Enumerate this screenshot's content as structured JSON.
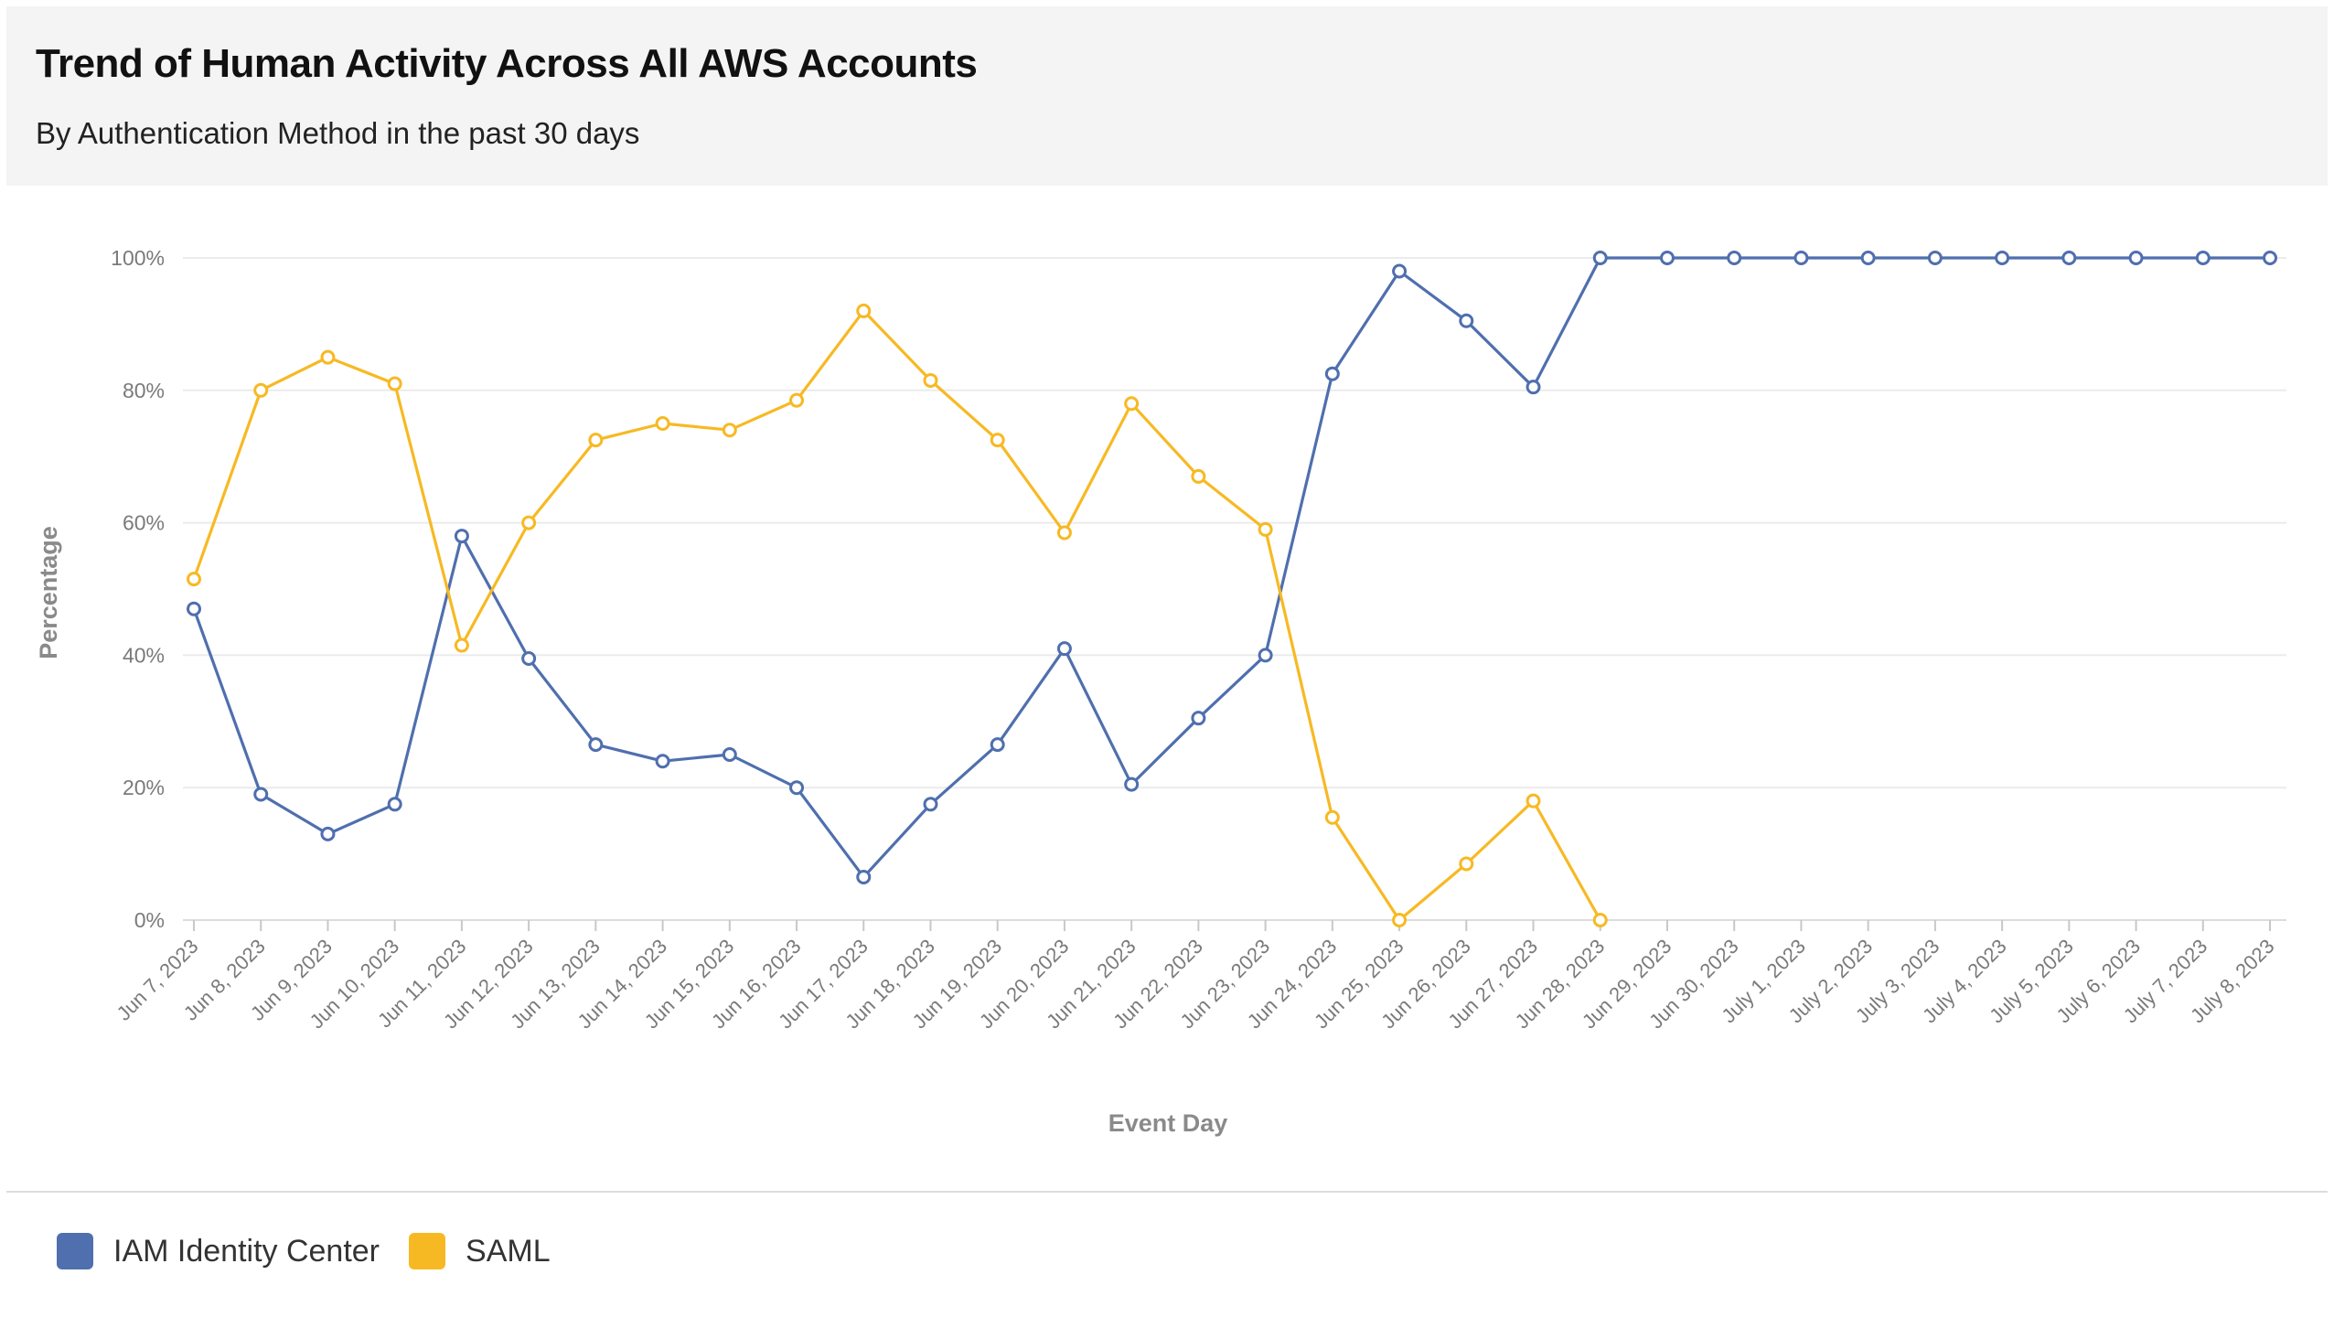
{
  "header": {
    "title": "Trend of Human Activity Across All AWS Accounts",
    "subtitle": "By Authentication Method in the past 30 days"
  },
  "colors": {
    "iam": "#4f6fae",
    "saml": "#f7b923",
    "grid": "#ebebeb"
  },
  "legend": [
    {
      "label": "IAM Identity Center",
      "color": "#4f6fae"
    },
    {
      "label": "SAML",
      "color": "#f7b923"
    }
  ],
  "chart_data": {
    "type": "line",
    "title": "Trend of Human Activity Across All AWS Accounts",
    "subtitle": "By Authentication Method in the past 30 days",
    "xlabel": "Event Day",
    "ylabel": "Percentage",
    "ylim": [
      0,
      100
    ],
    "yticks": [
      "0%",
      "20%",
      "40%",
      "60%",
      "80%",
      "100%"
    ],
    "grid": true,
    "legend_position": "bottom-left",
    "categories": [
      "Jun 7, 2023",
      "Jun 8, 2023",
      "Jun 9, 2023",
      "Jun 10, 2023",
      "Jun 11, 2023",
      "Jun 12, 2023",
      "Jun 13, 2023",
      "Jun 14, 2023",
      "Jun 15, 2023",
      "Jun 16, 2023",
      "Jun 17, 2023",
      "Jun 18, 2023",
      "Jun 19, 2023",
      "Jun 20, 2023",
      "Jun 21, 2023",
      "Jun 22, 2023",
      "Jun 23, 2023",
      "Jun 24, 2023",
      "Jun 25, 2023",
      "Jun 26, 2023",
      "Jun 27, 2023",
      "Jun 28, 2023",
      "Jun 29, 2023",
      "Jun 30, 2023",
      "July 1, 2023",
      "July 2, 2023",
      "July 3, 2023",
      "July 4, 2023",
      "July 5, 2023",
      "July 6, 2023",
      "July 7, 2023",
      "July 8, 2023"
    ],
    "series": [
      {
        "name": "IAM Identity Center",
        "color": "#4f6fae",
        "values": [
          47,
          19,
          13,
          17.5,
          58,
          39.5,
          26.5,
          24,
          25,
          20,
          6.5,
          17.5,
          26.5,
          41,
          20.5,
          30.5,
          40,
          82.5,
          98,
          90.5,
          80.5,
          100,
          100,
          100,
          100,
          100,
          100,
          100,
          100,
          100,
          100,
          100
        ]
      },
      {
        "name": "SAML",
        "color": "#f7b923",
        "values": [
          51.5,
          80,
          85,
          81,
          41.5,
          60,
          72.5,
          75,
          74,
          78.5,
          92,
          81.5,
          72.5,
          58.5,
          78,
          67,
          59,
          15.5,
          0,
          8.5,
          18,
          0,
          null,
          null,
          null,
          null,
          null,
          null,
          null,
          null,
          null,
          null
        ]
      }
    ]
  }
}
